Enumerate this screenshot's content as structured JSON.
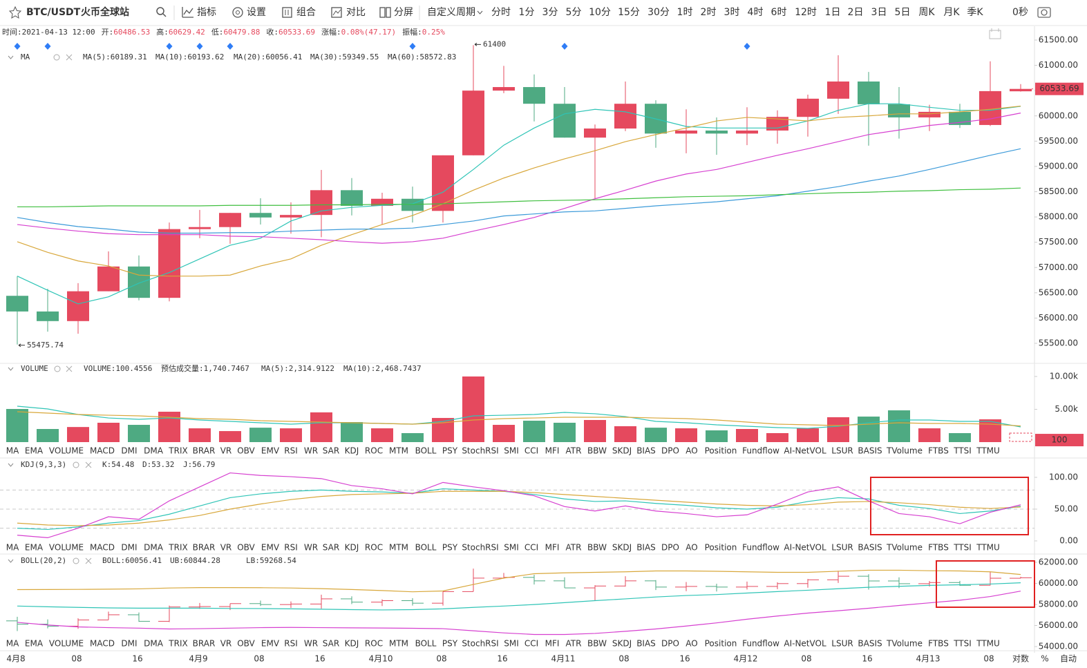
{
  "toolbar": {
    "symbol": "BTC/USDT",
    "exchange": "火币全球站",
    "buttons": [
      "指标",
      "设置",
      "组合",
      "对比",
      "分屏"
    ],
    "custom_period": "自定义周期",
    "periods": [
      "分时",
      "1分",
      "3分",
      "5分",
      "10分",
      "15分",
      "30分",
      "1时",
      "2时",
      "3时",
      "4时",
      "6时",
      "12时",
      "1日",
      "2日",
      "3日",
      "5日",
      "周K",
      "月K",
      "季K"
    ],
    "active_period": 10,
    "countdown": "0秒"
  },
  "info": [
    {
      "label": "时间:",
      "value": "2021-04-13 12:00"
    },
    {
      "label": "开:",
      "value": "60486.53"
    },
    {
      "label": "高:",
      "value": "60629.42"
    },
    {
      "label": "低:",
      "value": "60479.88"
    },
    {
      "label": "收:",
      "value": "60533.69"
    },
    {
      "label": "涨幅:",
      "value": "0.08%(47.17)"
    },
    {
      "label": "振幅:",
      "value": "0.25%"
    }
  ],
  "colors": {
    "up": "#e5495e",
    "down": "#4eaa82"
  },
  "main": {
    "legend_title": "MA",
    "legend": [
      {
        "text": "MA(5):60189.31",
        "color": "#2ec4b6"
      },
      {
        "text": "MA(10):60193.62",
        "color": "#d8a73a"
      },
      {
        "text": "MA(20):60056.41",
        "color": "#d63fd0"
      },
      {
        "text": "MA(30):59349.55",
        "color": "#3b9ad9"
      },
      {
        "text": "MA(60):58572.83",
        "color": "#3fbf3f"
      }
    ],
    "ylim": [
      55500,
      61500
    ],
    "yticks": [
      {
        "value": 55500,
        "label": "55500.00"
      },
      {
        "value": 56000,
        "label": "56000.00"
      },
      {
        "value": 56500,
        "label": "56500.00"
      },
      {
        "value": 57000,
        "label": "57000.00"
      },
      {
        "value": 57500,
        "label": "57500.00"
      },
      {
        "value": 58000,
        "label": "58000.00"
      },
      {
        "value": 58500,
        "label": "58500.00"
      },
      {
        "value": 59000,
        "label": "59000.00"
      },
      {
        "value": 59500,
        "label": "59500.00"
      },
      {
        "value": 60000,
        "label": "60000.00"
      },
      {
        "value": 60500,
        "label": "60500.00"
      },
      {
        "value": 61000,
        "label": "61000.00"
      },
      {
        "value": 61500,
        "label": "61500.00"
      }
    ],
    "candles": {
      "open": [
        56440,
        56130,
        55940,
        56530,
        57020,
        56400,
        57760,
        57800,
        58080,
        57990,
        58040,
        58530,
        58220,
        58360,
        58120,
        59220,
        60500,
        60570,
        60240,
        59570,
        59750,
        60240,
        59650,
        59710,
        59650,
        59710,
        59980,
        60340,
        60680,
        60230,
        59970,
        60080,
        59820,
        60486.53
      ],
      "high": [
        56830,
        56580,
        56690,
        57320,
        57240,
        57890,
        58140,
        58080,
        58370,
        58290,
        58930,
        58770,
        58480,
        58600,
        59220,
        61400,
        60990,
        60820,
        60570,
        59830,
        60680,
        60310,
        60130,
        59970,
        60170,
        60110,
        60420,
        61200,
        60870,
        60570,
        60220,
        60240,
        61080,
        60629.42
      ],
      "low": [
        55475.74,
        55730,
        55690,
        56530,
        56350,
        56330,
        57580,
        57470,
        57850,
        57670,
        57600,
        58030,
        57850,
        57890,
        57890,
        59220,
        60450,
        59890,
        59570,
        58370,
        59700,
        59370,
        59260,
        59230,
        59420,
        59450,
        59590,
        60040,
        59410,
        59550,
        59700,
        59760,
        59800,
        60479.88
      ],
      "close": [
        56130,
        55940,
        56530,
        57020,
        56400,
        57760,
        57800,
        58080,
        57990,
        58040,
        58530,
        58220,
        58360,
        58120,
        59220,
        60500,
        60570,
        60240,
        59570,
        59750,
        60240,
        59650,
        59710,
        59650,
        59710,
        59980,
        60340,
        60680,
        60230,
        59970,
        60080,
        59820,
        60490,
        60533.69
      ]
    },
    "ma": [
      {
        "values": [
          56830,
          56550,
          56280,
          56420,
          56690,
          56900,
          57170,
          57440,
          57580,
          57920,
          58120,
          58190,
          58230,
          58260,
          58490,
          58940,
          59420,
          59760,
          60040,
          60130,
          60080,
          59940,
          59790,
          59760,
          59760,
          59760,
          59900,
          60110,
          60240,
          60240,
          60170,
          60110,
          60110,
          60189.31
        ]
      },
      {
        "values": [
          57510,
          57300,
          57130,
          57030,
          56850,
          56830,
          56830,
          56850,
          57030,
          57170,
          57440,
          57650,
          57850,
          58030,
          58260,
          58530,
          58770,
          58970,
          59150,
          59310,
          59490,
          59630,
          59760,
          59900,
          59970,
          59940,
          59900,
          59970,
          60000,
          60040,
          60040,
          60080,
          60130,
          60193.62
        ]
      },
      {
        "values": [
          57850,
          57780,
          57720,
          57670,
          57650,
          57650,
          57650,
          57620,
          57610,
          57580,
          57550,
          57510,
          57480,
          57510,
          57580,
          57720,
          57850,
          57990,
          58170,
          58360,
          58530,
          58710,
          58850,
          58940,
          59080,
          59220,
          59350,
          59490,
          59630,
          59720,
          59810,
          59870,
          59940,
          60056.41
        ]
      },
      {
        "values": [
          57990,
          57890,
          57810,
          57760,
          57700,
          57680,
          57680,
          57690,
          57690,
          57720,
          57740,
          57760,
          57760,
          57780,
          57850,
          57920,
          58020,
          58060,
          58100,
          58120,
          58170,
          58220,
          58260,
          58300,
          58360,
          58420,
          58510,
          58600,
          58710,
          58810,
          58940,
          59080,
          59220,
          59349.55
        ]
      },
      {
        "values": [
          58200,
          58200,
          58210,
          58220,
          58220,
          58220,
          58220,
          58230,
          58230,
          58230,
          58240,
          58240,
          58250,
          58250,
          58260,
          58280,
          58300,
          58320,
          58330,
          58340,
          58360,
          58380,
          58400,
          58410,
          58420,
          58440,
          58460,
          58480,
          58490,
          58510,
          58520,
          58540,
          58550,
          58572.83
        ]
      }
    ],
    "high_label": "61400",
    "low_label": "55475.74",
    "last_label": "60533.69",
    "event_markers": [
      0,
      1,
      5,
      6,
      7,
      13,
      18,
      24
    ]
  },
  "volume": {
    "legend_title": "VOLUME",
    "legend": [
      {
        "text": "VOLUME:100.4556",
        "color": "#333333"
      },
      {
        "text": "预估成交量:1,740.7467",
        "color": "#777777"
      },
      {
        "text": "MA(5):2,314.9122",
        "color": "#2ec4b6"
      },
      {
        "text": "MA(10):2,468.7437",
        "color": "#d8a73a"
      }
    ],
    "ylim": [
      0,
      10000
    ],
    "yticks": [
      {
        "value": 5000,
        "label": "5.00k"
      },
      {
        "value": 10000,
        "label": "10.00k"
      }
    ],
    "values": [
      5050,
      2000,
      2300,
      2950,
      2630,
      4630,
      2100,
      1680,
      2200,
      2100,
      4530,
      3050,
      2100,
      1370,
      3680,
      10000,
      2630,
      3260,
      2950,
      3370,
      2420,
      2200,
      2100,
      1790,
      2000,
      1370,
      2100,
      3790,
      3890,
      4840,
      2100,
      1370,
      3470,
      100.4556
    ],
    "ma": [
      {
        "values": [
          5470,
          5050,
          4210,
          3680,
          3470,
          3680,
          3370,
          3160,
          2950,
          2740,
          2950,
          2950,
          2840,
          2740,
          3160,
          4000,
          4100,
          4210,
          4530,
          4320,
          3890,
          3160,
          2950,
          2630,
          2420,
          2210,
          2100,
          2420,
          2950,
          3370,
          3370,
          3160,
          3160,
          2314.9122
        ]
      },
      {
        "values": [
          4630,
          4420,
          4210,
          4100,
          4000,
          3790,
          3580,
          3470,
          3260,
          3160,
          3050,
          2950,
          2840,
          2740,
          2950,
          3370,
          3580,
          3680,
          3790,
          3790,
          3790,
          3680,
          3580,
          3370,
          3050,
          2740,
          2630,
          2530,
          2740,
          2950,
          2840,
          2840,
          2740,
          2468.7437
        ]
      }
    ],
    "last_label": "100"
  },
  "kdj": {
    "legend_title": "KDJ(9,3,3)",
    "legend": [
      {
        "text": "K:54.48",
        "color": "#2ec4b6"
      },
      {
        "text": "D:53.32",
        "color": "#d8a73a"
      },
      {
        "text": "J:56.79",
        "color": "#d63fd0"
      }
    ],
    "ylim": [
      0,
      100
    ],
    "yticks": [
      {
        "value": 0,
        "label": "0.00"
      },
      {
        "value": 50,
        "label": "50.00"
      },
      {
        "value": 100,
        "label": "100.00"
      }
    ],
    "levels": [
      80,
      50,
      20
    ],
    "lines": [
      {
        "values": [
          20,
          18,
          22,
          28,
          32,
          42,
          55,
          68,
          74,
          78,
          80,
          78,
          77,
          75,
          82,
          80,
          78,
          73,
          66,
          62,
          63,
          59,
          56,
          52,
          50,
          53,
          62,
          68,
          66,
          56,
          51,
          43,
          47,
          54.48
        ]
      },
      {
        "values": [
          28,
          25,
          24,
          25,
          28,
          33,
          40,
          50,
          58,
          65,
          70,
          73,
          74,
          75,
          78,
          78,
          78,
          76,
          73,
          70,
          67,
          64,
          61,
          58,
          56,
          55,
          57,
          61,
          62,
          60,
          57,
          53,
          51,
          53.32
        ]
      },
      {
        "values": [
          9,
          5,
          20,
          38,
          34,
          63,
          85,
          107,
          103,
          101,
          98,
          87,
          82,
          74,
          92,
          85,
          79,
          71,
          54,
          47,
          55,
          47,
          43,
          38,
          41,
          58,
          77,
          85,
          63,
          43,
          38,
          27,
          45,
          56.79
        ]
      }
    ]
  },
  "boll": {
    "legend_title": "BOLL(20,2)",
    "legend": [
      {
        "text": "BOLL:60056.41",
        "color": "#2ec4b6"
      },
      {
        "text": "UB:60844.28",
        "color": "#d8a73a"
      },
      {
        "text": "LB:59268.54",
        "color": "#d63fd0"
      }
    ],
    "ylim": [
      54000,
      62000
    ],
    "yticks": [
      {
        "value": 54000,
        "label": "54000.00"
      },
      {
        "value": 56000,
        "label": "56000.00"
      },
      {
        "value": 58000,
        "label": "58000.00"
      },
      {
        "value": 60000,
        "label": "60000.00"
      },
      {
        "value": 62000,
        "label": "62000.00"
      }
    ],
    "ub": [
      59410,
      59420,
      59430,
      59450,
      59480,
      59560,
      59600,
      59600,
      59590,
      59560,
      59500,
      59420,
      59320,
      59200,
      59280,
      59900,
      60500,
      60920,
      61000,
      61050,
      61100,
      61180,
      61180,
      61150,
      61100,
      61050,
      61050,
      61150,
      61250,
      61250,
      61200,
      61180,
      61100,
      60844.28
    ],
    "lb": [
      56300,
      56050,
      55870,
      55800,
      55750,
      55670,
      55700,
      55750,
      55800,
      55820,
      55800,
      55780,
      55760,
      55740,
      55700,
      55500,
      55300,
      55150,
      55150,
      55250,
      55450,
      55670,
      55950,
      56250,
      56600,
      56900,
      57180,
      57400,
      57640,
      57900,
      58150,
      58400,
      58750,
      59268.54
    ]
  },
  "indicators": {
    "names": [
      "MA",
      "EMA",
      "VOLUME",
      "MACD",
      "DMI",
      "DMA",
      "TRIX",
      "BRAR",
      "VR",
      "OBV",
      "EMV",
      "RSI",
      "WR",
      "SAR",
      "KDJ",
      "ROC",
      "MTM",
      "BOLL",
      "PSY",
      "StochRSI",
      "SMI",
      "CCI",
      "MFI",
      "ATR",
      "BBW",
      "SKDJ",
      "BIAS",
      "DPO",
      "AO",
      "Position",
      "Fundflow",
      "AI-NetVOL",
      "LSUR",
      "BASIS",
      "TVolume",
      "FTBS",
      "TTSI",
      "TTMU"
    ],
    "in_use": [
      2,
      14,
      17
    ],
    "rows": [
      {
        "active": 2
      },
      {
        "active": 14
      },
      {
        "active": 17
      }
    ]
  },
  "xaxis": {
    "labels": [
      "4月8",
      "08",
      "16",
      "4月9",
      "08",
      "16",
      "4月10",
      "08",
      "16",
      "4月11",
      "08",
      "16",
      "4月12",
      "08",
      "16",
      "4月13",
      "08"
    ]
  },
  "footer": [
    "对数",
    "%",
    "自动"
  ]
}
